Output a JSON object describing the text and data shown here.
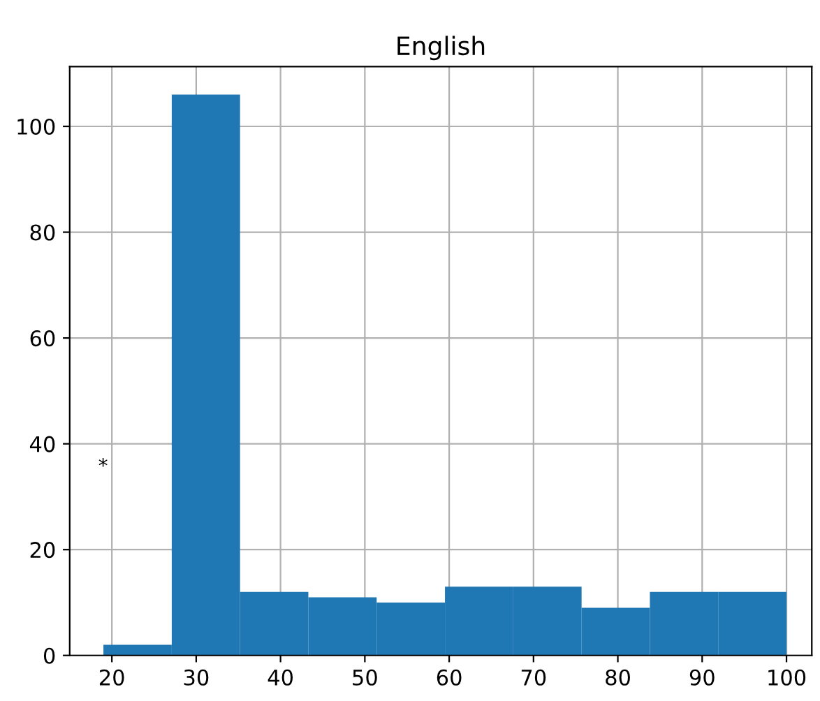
{
  "chart_data": {
    "type": "histogram",
    "title": "English",
    "bins": [
      19,
      27.1,
      35.2,
      43.3,
      51.4,
      59.5,
      67.6,
      75.7,
      83.8,
      91.9,
      100
    ],
    "values": [
      2,
      106,
      12,
      11,
      10,
      13,
      13,
      9,
      12,
      12
    ],
    "color": "#1f77b4",
    "xlim": [
      15,
      103
    ],
    "ylim": [
      0,
      111.3
    ],
    "xticks": [
      20,
      30,
      40,
      50,
      60,
      70,
      80,
      90,
      100
    ],
    "yticks": [
      0,
      20,
      40,
      60,
      80,
      100
    ],
    "grid": true,
    "annotations": [
      "*"
    ]
  }
}
